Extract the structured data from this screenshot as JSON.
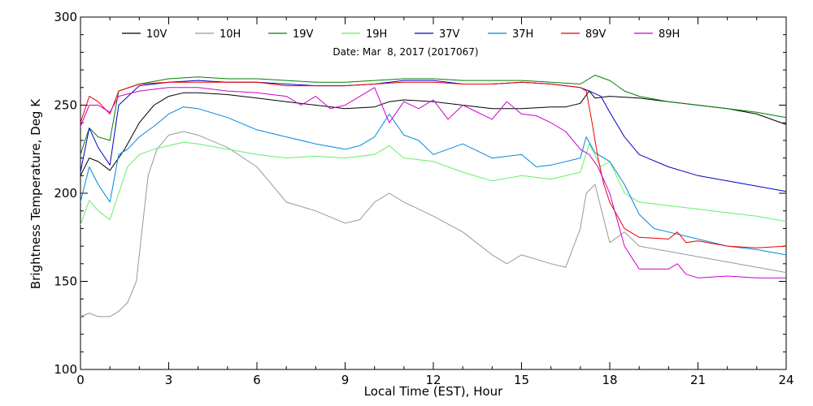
{
  "chart_data": {
    "type": "line",
    "date_label": "Date: Mar  8, 2017 (2017067)",
    "xlabel": "Local Time (EST), Hour",
    "ylabel": "Brightness Temperature, Deg K",
    "xlim": [
      0,
      24
    ],
    "ylim": [
      100,
      300
    ],
    "xticks": [
      0,
      3,
      6,
      9,
      12,
      15,
      18,
      21,
      24
    ],
    "yticks": [
      100,
      150,
      200,
      250,
      300
    ],
    "grid": false,
    "legend_position": "top",
    "series": [
      {
        "name": "10V",
        "color": "#000000",
        "x": [
          0,
          0.3,
          0.6,
          1,
          1.5,
          2,
          2.5,
          3,
          3.5,
          4,
          5,
          6,
          7,
          8,
          9,
          10,
          10.5,
          11,
          12,
          13,
          14,
          15,
          16,
          16.5,
          17,
          17.3,
          17.5,
          18,
          19,
          20,
          21,
          22,
          23,
          24
        ],
        "y": [
          210,
          220,
          218,
          213,
          225,
          240,
          250,
          255,
          257,
          257,
          256,
          254,
          252,
          250,
          248,
          249,
          252,
          253,
          252,
          250,
          248,
          248,
          249,
          249,
          251,
          258,
          254,
          255,
          254,
          252,
          250,
          248,
          245,
          239
        ]
      },
      {
        "name": "10H",
        "color": "#999999",
        "x": [
          0,
          0.3,
          0.6,
          1,
          1.3,
          1.6,
          1.9,
          2.1,
          2.3,
          2.6,
          3,
          3.5,
          4,
          5,
          6,
          6.5,
          7,
          8,
          9,
          9.5,
          10,
          10.5,
          11,
          12,
          13,
          14,
          14.5,
          15,
          16,
          16.5,
          17,
          17.2,
          17.5,
          17.8,
          18,
          18.5,
          19,
          20,
          21,
          22,
          23,
          24
        ],
        "y": [
          130,
          132,
          130,
          130,
          133,
          138,
          150,
          180,
          210,
          225,
          233,
          235,
          233,
          226,
          215,
          205,
          195,
          190,
          183,
          185,
          195,
          200,
          195,
          187,
          178,
          165,
          160,
          165,
          160,
          158,
          180,
          200,
          205,
          185,
          172,
          178,
          170,
          167,
          164,
          161,
          158,
          155
        ]
      },
      {
        "name": "19V",
        "color": "#008000",
        "x": [
          0,
          0.3,
          0.6,
          1,
          1.3,
          2,
          3,
          4,
          5,
          6,
          7,
          8,
          9,
          10,
          11,
          12,
          13,
          14,
          15,
          16,
          17,
          17.5,
          18,
          18.5,
          19,
          20,
          21,
          22,
          23,
          24
        ],
        "y": [
          222,
          237,
          232,
          230,
          258,
          262,
          265,
          266,
          265,
          265,
          264,
          263,
          263,
          264,
          265,
          265,
          264,
          264,
          264,
          263,
          262,
          267,
          264,
          258,
          255,
          252,
          250,
          248,
          246,
          243
        ]
      },
      {
        "name": "19H",
        "color": "#66ee66",
        "x": [
          0,
          0.3,
          0.6,
          1,
          1.3,
          1.6,
          2,
          2.5,
          3,
          3.5,
          4,
          5,
          6,
          7,
          8,
          9,
          10,
          10.5,
          11,
          12,
          13,
          14,
          15,
          16,
          17,
          17.3,
          17.7,
          18,
          18.5,
          19,
          20,
          21,
          22,
          23,
          24
        ],
        "y": [
          182,
          196,
          190,
          185,
          200,
          215,
          222,
          225,
          227,
          229,
          228,
          225,
          222,
          220,
          221,
          220,
          222,
          227,
          220,
          218,
          212,
          207,
          210,
          208,
          212,
          228,
          215,
          218,
          200,
          195,
          193,
          191,
          189,
          187,
          184
        ]
      },
      {
        "name": "37V",
        "color": "#0000cc",
        "x": [
          0,
          0.3,
          0.6,
          1,
          1.3,
          2,
          3,
          4,
          5,
          6,
          7,
          8,
          9,
          10,
          11,
          12,
          13,
          14,
          15,
          16,
          17,
          17.3,
          17.7,
          18,
          18.5,
          19,
          20,
          21,
          22,
          23,
          24
        ],
        "y": [
          212,
          237,
          226,
          216,
          250,
          261,
          263,
          264,
          263,
          263,
          262,
          261,
          261,
          262,
          264,
          264,
          262,
          262,
          263,
          262,
          260,
          258,
          255,
          246,
          232,
          222,
          215,
          210,
          207,
          204,
          201
        ]
      },
      {
        "name": "37H",
        "color": "#0088dd",
        "x": [
          0,
          0.3,
          0.6,
          1,
          1.3,
          1.6,
          2,
          2.5,
          3,
          3.5,
          4,
          5,
          6,
          7,
          8,
          9,
          9.5,
          10,
          10.5,
          11,
          11.5,
          12,
          13,
          14,
          15,
          15.5,
          16,
          17,
          17.2,
          17.5,
          18,
          18.5,
          19,
          19.5,
          20,
          21,
          22,
          23,
          24
        ],
        "y": [
          195,
          215,
          205,
          195,
          222,
          225,
          232,
          238,
          245,
          249,
          248,
          243,
          236,
          232,
          228,
          225,
          227,
          232,
          245,
          233,
          230,
          222,
          228,
          220,
          222,
          215,
          216,
          220,
          232,
          223,
          218,
          205,
          188,
          180,
          178,
          174,
          170,
          168,
          165
        ]
      },
      {
        "name": "89V",
        "color": "#ee0000",
        "x": [
          0,
          0.3,
          0.6,
          1,
          1.3,
          2,
          3,
          4,
          5,
          6,
          7,
          8,
          9,
          10,
          11,
          12,
          13,
          14,
          15,
          16,
          17,
          17.2,
          17.4,
          17.6,
          17.8,
          18,
          18.5,
          19,
          20,
          20.3,
          20.6,
          21,
          22,
          23,
          24
        ],
        "y": [
          240,
          255,
          252,
          245,
          258,
          262,
          263,
          263,
          263,
          263,
          261,
          261,
          261,
          262,
          263,
          263,
          262,
          262,
          263,
          262,
          260,
          258,
          240,
          220,
          205,
          195,
          180,
          175,
          174,
          178,
          172,
          173,
          170,
          169,
          170
        ]
      },
      {
        "name": "89H",
        "color": "#cc00cc",
        "x": [
          0,
          0.3,
          0.6,
          1,
          1.3,
          2,
          3,
          4,
          5,
          6,
          7,
          7.5,
          8,
          8.5,
          9,
          10,
          10.5,
          11,
          11.5,
          12,
          12.5,
          13,
          14,
          14.5,
          15,
          15.5,
          16,
          16.5,
          17,
          17.3,
          17.6,
          18,
          18.5,
          19,
          20,
          20.3,
          20.6,
          21,
          22,
          23,
          24
        ],
        "y": [
          238,
          250,
          250,
          246,
          255,
          258,
          260,
          260,
          258,
          257,
          255,
          250,
          255,
          248,
          250,
          260,
          240,
          252,
          248,
          253,
          242,
          250,
          242,
          252,
          245,
          244,
          240,
          235,
          225,
          222,
          215,
          200,
          170,
          157,
          157,
          160,
          154,
          152,
          153,
          152,
          152
        ]
      }
    ]
  }
}
